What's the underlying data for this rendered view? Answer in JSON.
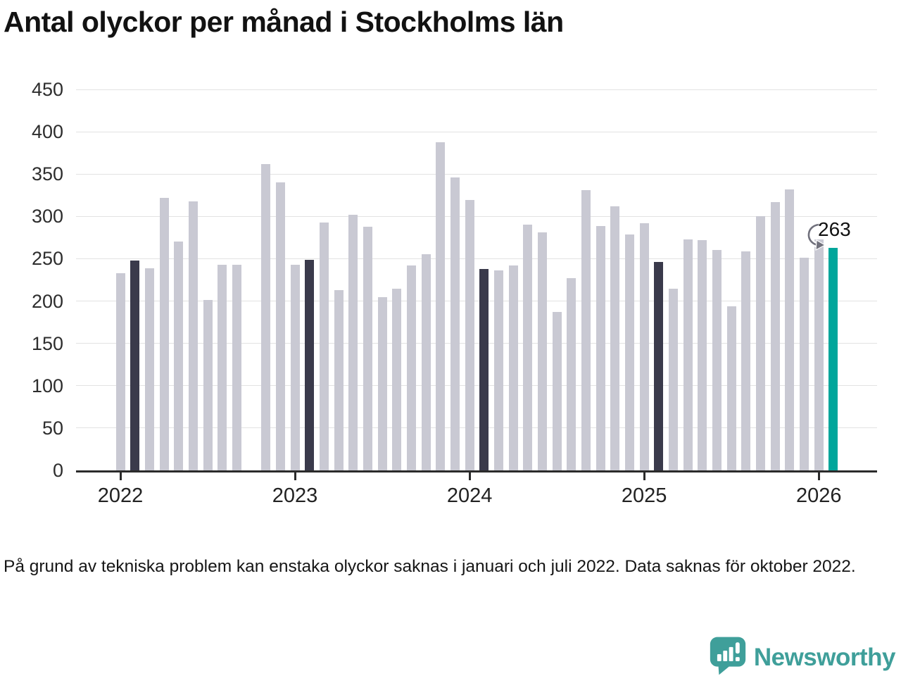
{
  "title": "Antal olyckor per månad i Stockholms län",
  "footnote": "På grund av tekniska problem kan enstaka olyckor saknas i januari och juli 2022. Data saknas för oktober 2022.",
  "annotation": {
    "label": "263",
    "points_to": "2026-02"
  },
  "logo": {
    "text": "Newsworthy",
    "icon": "speech-bubble-bar-chart"
  },
  "colors": {
    "bar_base": "#c9c9d3",
    "bar_highlight": "#3a3a4b",
    "bar_accent": "#00a69b",
    "gridline": "#e2e2e2",
    "axis": "#2b2b2b",
    "text": "#161616",
    "logo": "#3f9f9a"
  },
  "chart_data": {
    "type": "bar",
    "title": "Antal olyckor per månad i Stockholms län",
    "xlabel": "",
    "ylabel": "",
    "ylim": [
      0,
      450
    ],
    "yticks": [
      0,
      50,
      100,
      150,
      200,
      250,
      300,
      350,
      400,
      450
    ],
    "grid": "horizontal",
    "legend_position": "none",
    "year_labels": [
      "2022",
      "2023",
      "2024",
      "2025",
      "2026"
    ],
    "missing_months": [
      "2022-10"
    ],
    "points": [
      {
        "month": "2022-01",
        "value": 233,
        "style": "base"
      },
      {
        "month": "2022-02",
        "value": 248,
        "style": "highlight"
      },
      {
        "month": "2022-03",
        "value": 239,
        "style": "base"
      },
      {
        "month": "2022-04",
        "value": 322,
        "style": "base"
      },
      {
        "month": "2022-05",
        "value": 270,
        "style": "base"
      },
      {
        "month": "2022-06",
        "value": 318,
        "style": "base"
      },
      {
        "month": "2022-07",
        "value": 201,
        "style": "base"
      },
      {
        "month": "2022-08",
        "value": 243,
        "style": "base"
      },
      {
        "month": "2022-09",
        "value": 243,
        "style": "base"
      },
      {
        "month": "2022-10",
        "value": null,
        "style": "base"
      },
      {
        "month": "2022-11",
        "value": 362,
        "style": "base"
      },
      {
        "month": "2022-12",
        "value": 340,
        "style": "base"
      },
      {
        "month": "2023-01",
        "value": 243,
        "style": "base"
      },
      {
        "month": "2023-02",
        "value": 249,
        "style": "highlight"
      },
      {
        "month": "2023-03",
        "value": 293,
        "style": "base"
      },
      {
        "month": "2023-04",
        "value": 213,
        "style": "base"
      },
      {
        "month": "2023-05",
        "value": 302,
        "style": "base"
      },
      {
        "month": "2023-06",
        "value": 288,
        "style": "base"
      },
      {
        "month": "2023-07",
        "value": 205,
        "style": "base"
      },
      {
        "month": "2023-08",
        "value": 215,
        "style": "base"
      },
      {
        "month": "2023-09",
        "value": 242,
        "style": "base"
      },
      {
        "month": "2023-10",
        "value": 255,
        "style": "base"
      },
      {
        "month": "2023-11",
        "value": 388,
        "style": "base"
      },
      {
        "month": "2023-12",
        "value": 346,
        "style": "base"
      },
      {
        "month": "2024-01",
        "value": 319,
        "style": "base"
      },
      {
        "month": "2024-02",
        "value": 238,
        "style": "highlight"
      },
      {
        "month": "2024-03",
        "value": 236,
        "style": "base"
      },
      {
        "month": "2024-04",
        "value": 242,
        "style": "base"
      },
      {
        "month": "2024-05",
        "value": 290,
        "style": "base"
      },
      {
        "month": "2024-06",
        "value": 281,
        "style": "base"
      },
      {
        "month": "2024-07",
        "value": 187,
        "style": "base"
      },
      {
        "month": "2024-08",
        "value": 227,
        "style": "base"
      },
      {
        "month": "2024-09",
        "value": 331,
        "style": "base"
      },
      {
        "month": "2024-10",
        "value": 289,
        "style": "base"
      },
      {
        "month": "2024-11",
        "value": 312,
        "style": "base"
      },
      {
        "month": "2024-12",
        "value": 279,
        "style": "base"
      },
      {
        "month": "2025-01",
        "value": 292,
        "style": "base"
      },
      {
        "month": "2025-02",
        "value": 246,
        "style": "highlight"
      },
      {
        "month": "2025-03",
        "value": 215,
        "style": "base"
      },
      {
        "month": "2025-04",
        "value": 273,
        "style": "base"
      },
      {
        "month": "2025-05",
        "value": 272,
        "style": "base"
      },
      {
        "month": "2025-06",
        "value": 260,
        "style": "base"
      },
      {
        "month": "2025-07",
        "value": 194,
        "style": "base"
      },
      {
        "month": "2025-08",
        "value": 259,
        "style": "base"
      },
      {
        "month": "2025-09",
        "value": 300,
        "style": "base"
      },
      {
        "month": "2025-10",
        "value": 317,
        "style": "base"
      },
      {
        "month": "2025-11",
        "value": 332,
        "style": "base"
      },
      {
        "month": "2025-12",
        "value": 251,
        "style": "base"
      },
      {
        "month": "2026-01",
        "value": 273,
        "style": "base"
      },
      {
        "month": "2026-02",
        "value": 263,
        "style": "accent"
      }
    ]
  }
}
